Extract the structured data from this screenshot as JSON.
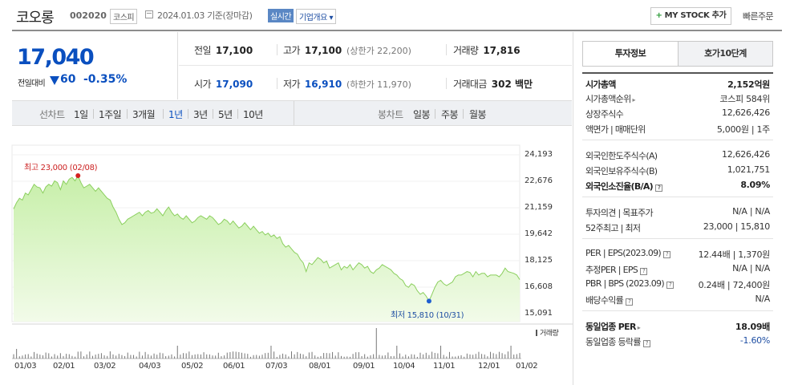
{
  "header": {
    "name": "코오롱",
    "code": "002020",
    "market": "코스피",
    "date": "2024.01.03 기준(장마감)",
    "realtime": "실시간",
    "company_overview": "기업개요",
    "mystock_label": "MY STOCK 추가",
    "quick_order": "빠른주문"
  },
  "price": {
    "current": "17,040",
    "change_label": "전일대비",
    "change": "60",
    "change_rate": "-0.35%"
  },
  "summary": {
    "prev_label": "전일",
    "prev": "17,100",
    "high_label": "고가",
    "high": "17,100",
    "upper_limit": "(상한가 22,200)",
    "volume_label": "거래량",
    "volume": "17,816",
    "open_label": "시가",
    "open": "17,090",
    "low_label": "저가",
    "low": "16,910",
    "lower_limit": "(하한가 11,970)",
    "amount_label": "거래대금",
    "amount": "302 백만"
  },
  "chart_tabs": {
    "line_label": "선차트",
    "periods": [
      "1일",
      "1주일",
      "3개월",
      "1년",
      "3년",
      "5년",
      "10년"
    ],
    "selected_period": "1년",
    "candle_label": "봉차트",
    "candles": [
      "일봉",
      "주봉",
      "월봉"
    ]
  },
  "chart_data": {
    "type": "area",
    "x_labels": [
      "01/03",
      "02/01",
      "03/02",
      "04/03",
      "05/02",
      "06/01",
      "07/03",
      "08/01",
      "09/01",
      "10/04",
      "11/01",
      "12/01",
      "01/02"
    ],
    "y_ticks": [
      24193,
      22676,
      21159,
      19642,
      18125,
      16608,
      15091
    ],
    "ylim": [
      15091,
      24193
    ],
    "values": [
      21090,
      21450,
      21700,
      21600,
      22000,
      21900,
      22200,
      22500,
      22350,
      22300,
      22000,
      22350,
      22500,
      22400,
      22700,
      22600,
      22200,
      22700,
      22500,
      22800,
      22900,
      22700,
      23000,
      22600,
      22300,
      22400,
      22500,
      22300,
      22100,
      22300,
      22100,
      21900,
      21700,
      21600,
      21200,
      20900,
      20500,
      20200,
      20300,
      20500,
      20600,
      20700,
      20800,
      20900,
      20700,
      20900,
      21000,
      20850,
      20900,
      21100,
      20900,
      20700,
      21000,
      21200,
      20900,
      20700,
      20800,
      20600,
      20500,
      20700,
      20500,
      20300,
      20400,
      20600,
      20700,
      20600,
      20500,
      20700,
      20600,
      20400,
      20200,
      20300,
      20500,
      20400,
      20200,
      20400,
      20200,
      20000,
      20100,
      20300,
      20100,
      19900,
      20100,
      19900,
      19700,
      19800,
      19600,
      19700,
      19500,
      19600,
      19400,
      19500,
      19100,
      18900,
      19000,
      18800,
      18600,
      18500,
      18200,
      18000,
      17500,
      18000,
      17900,
      18100,
      18300,
      18200,
      18000,
      18100,
      17700,
      17800,
      17900,
      18000,
      17600,
      17800,
      17700,
      17900,
      17600,
      17800,
      18000,
      17900,
      17700,
      17800,
      17500,
      17400,
      17600,
      17700,
      17900,
      17800,
      17700,
      17600,
      17400,
      17300,
      17100,
      17000,
      16700,
      16600,
      16800,
      16700,
      16400,
      16200,
      16300,
      16100,
      15810,
      16200,
      16600,
      16900,
      17000,
      16800,
      16700,
      16800,
      16900,
      17200,
      17300,
      17300,
      17400,
      17500,
      17450,
      17200,
      17500,
      17300,
      17400,
      17400,
      17200,
      17300,
      17300,
      17300,
      17200,
      17400,
      17700,
      17500,
      17450,
      17400,
      17300,
      17040
    ],
    "volume_label": "거래량",
    "high_annotation": "최고 23,000 (02/08)",
    "low_annotation": "최저 15,810 (10/31)",
    "high": {
      "value": 23000,
      "date": "02/08"
    },
    "low": {
      "value": 15810,
      "date": "10/31"
    }
  },
  "right_panel": {
    "tabs": [
      "투자정보",
      "호가10단계"
    ],
    "rows": [
      {
        "k": "시가총액",
        "v": "2,152억원",
        "bold": true
      },
      {
        "k": "시가총액순위",
        "v": "코스피  584위",
        "arrow": true
      },
      {
        "k": "상장주식수",
        "v": "12,626,426"
      },
      {
        "k": "액면가 | 매매단위",
        "v": "5,000원 | 1주"
      },
      {
        "k": "외국인한도주식수(A)",
        "v": "12,626,426"
      },
      {
        "k": "외국인보유주식수(B)",
        "v": "1,021,751"
      },
      {
        "k": "외국인소진율(B/A)",
        "v": "8.09%",
        "bold": true,
        "q": true
      },
      {
        "k": "투자의견 | 목표주가",
        "v": "N/A | N/A"
      },
      {
        "k": "52주최고 | 최저",
        "v": "23,000 | 15,810"
      },
      {
        "k": "PER | EPS(2023.09)",
        "v": "12.44배 | 1,370원",
        "q": true
      },
      {
        "k": "추정PER | EPS",
        "v": "N/A | N/A",
        "q": true
      },
      {
        "k": "PBR | BPS (2023.09)",
        "v": "0.24배 | 72,400원",
        "q": true
      },
      {
        "k": "배당수익률",
        "v": "N/A",
        "q": true
      },
      {
        "k": "동일업종 PER",
        "v": "18.09배",
        "bold": true,
        "arrow": true
      },
      {
        "k": "동일업종 등락률",
        "v": "-1.60%",
        "blue": true,
        "q": true
      }
    ]
  }
}
